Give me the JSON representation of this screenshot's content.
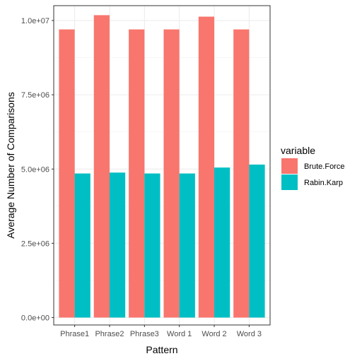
{
  "chart_data": {
    "type": "bar",
    "title": "",
    "xlabel": "Pattern",
    "ylabel": "Average Number of Comparisons",
    "categories": [
      "Phrase1",
      "Phrase2",
      "Phrase3",
      "Word 1",
      "Word 2",
      "Word 3"
    ],
    "series": [
      {
        "name": "Brute.Force",
        "color": "#F8766D",
        "values": [
          9700000,
          10180000,
          9700000,
          9700000,
          10130000,
          9700000
        ]
      },
      {
        "name": "Rabin.Karp",
        "color": "#00BFC4",
        "values": [
          4850000,
          4880000,
          4850000,
          4850000,
          5050000,
          5150000
        ]
      }
    ],
    "ylim": [
      -250000,
      10500000
    ],
    "yticks": [
      0,
      2500000,
      5000000,
      7500000,
      10000000
    ],
    "ytick_labels": [
      "0.0e+00",
      "2.5e+06",
      "5.0e+06",
      "7.5e+06",
      "1.0e+07"
    ],
    "grid": true,
    "legend": {
      "title": "variable",
      "placement": "right"
    }
  }
}
